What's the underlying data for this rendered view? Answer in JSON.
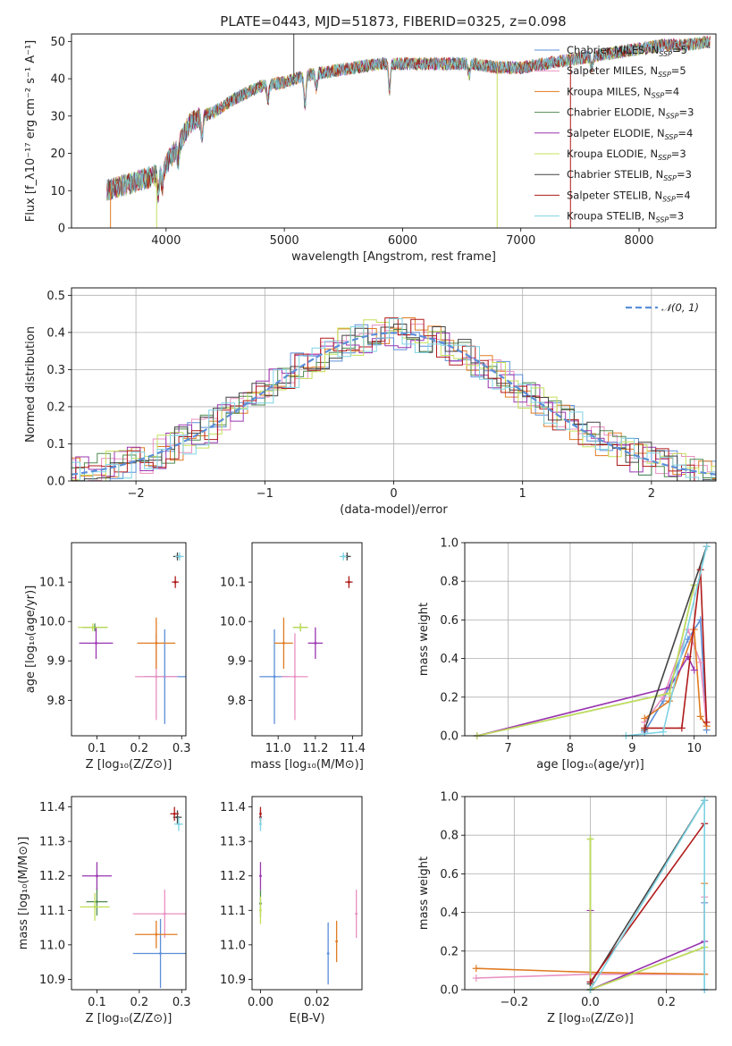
{
  "title": "PLATE=0443, MJD=51873, FIBERID=0325, z=0.098",
  "colors": {
    "Chabrier MILES": "#5b8fd9",
    "Salpeter MILES": "#e88fc0",
    "Kroupa MILES": "#e07b22",
    "Chabrier ELODIE": "#4f8a4f",
    "Salpeter ELODIE": "#9a35b0",
    "Kroupa ELODIE": "#c4e05a",
    "Chabrier STELIB": "#444444",
    "Salpeter STELIB": "#b01a1a",
    "Kroupa STELIB": "#7dd3e3",
    "normal_line": "#5b8fd9",
    "grid": "#b0b0b0"
  },
  "chart_data": [
    {
      "id": "spectrum",
      "type": "line",
      "xlabel": "wavelength [Angstrom, rest frame]",
      "ylabel": "Flux [f_λ10⁻¹⁷ erg cm⁻² s⁻¹ A⁻¹]",
      "xlim": [
        3200,
        8650
      ],
      "ylim": [
        0,
        52
      ],
      "xticks": [
        "4000",
        "5000",
        "6000",
        "7000",
        "8000"
      ],
      "yticks": [
        "0",
        "10",
        "20",
        "30",
        "40",
        "50"
      ],
      "legend_position": "upper right",
      "legend": [
        {
          "name": "Chabrier MILES",
          "sub": "SSP",
          "n": "5"
        },
        {
          "name": "Salpeter MILES",
          "sub": "SSP",
          "n": "5"
        },
        {
          "name": "Kroupa MILES",
          "sub": "SSP",
          "n": "4"
        },
        {
          "name": "Chabrier ELODIE",
          "sub": "SSP",
          "n": "3"
        },
        {
          "name": "Salpeter ELODIE",
          "sub": "SSP",
          "n": "4"
        },
        {
          "name": "Kroupa ELODIE",
          "sub": "SSP",
          "n": "3"
        },
        {
          "name": "Chabrier STELIB",
          "sub": "SSP",
          "n": "3"
        },
        {
          "name": "Salpeter STELIB",
          "sub": "SSP",
          "n": "4"
        },
        {
          "name": "Kroupa STELIB",
          "sub": "SSP",
          "n": "3"
        }
      ],
      "continuum": [
        [
          3500,
          10
        ],
        [
          3700,
          12
        ],
        [
          3900,
          14
        ],
        [
          4000,
          17
        ],
        [
          4100,
          22
        ],
        [
          4200,
          28
        ],
        [
          4300,
          30
        ],
        [
          4400,
          31
        ],
        [
          4500,
          33
        ],
        [
          4600,
          35
        ],
        [
          4800,
          38
        ],
        [
          5000,
          39
        ],
        [
          5200,
          41
        ],
        [
          5400,
          42
        ],
        [
          5600,
          43
        ],
        [
          5800,
          44
        ],
        [
          6000,
          44
        ],
        [
          6200,
          44
        ],
        [
          6400,
          44
        ],
        [
          6600,
          44
        ],
        [
          6800,
          43
        ],
        [
          7000,
          43
        ],
        [
          7200,
          44
        ],
        [
          7400,
          45
        ],
        [
          7600,
          46
        ],
        [
          7800,
          47
        ],
        [
          8000,
          48
        ],
        [
          8200,
          49
        ],
        [
          8400,
          49
        ],
        [
          8600,
          50
        ]
      ]
    },
    {
      "id": "residuals",
      "type": "bar",
      "xlabel": "(data-model)/error",
      "ylabel": "Normed distribution",
      "xlim": [
        -2.5,
        2.5
      ],
      "ylim": [
        0,
        0.52
      ],
      "xticks": [
        "−2",
        "−1",
        "0",
        "1",
        "2"
      ],
      "yticks": [
        "0.0",
        "0.1",
        "0.2",
        "0.3",
        "0.4",
        "0.5"
      ],
      "grid": true,
      "legend": "𝒩(0, 1)",
      "legend_position": "upper right",
      "bin_width": 0.1
    },
    {
      "id": "age_vs_Z",
      "type": "scatter",
      "xlabel": "Z [log₁₀(Z/Z⊙)]",
      "ylabel": "age  [log₁₀(age/yr)]",
      "xlim": [
        0.04,
        0.31
      ],
      "ylim": [
        9.71,
        10.2
      ],
      "xticks": [
        "0.1",
        "0.2",
        "0.3"
      ],
      "yticks": [
        "9.8",
        "9.9",
        "10.0",
        "10.1"
      ],
      "points": [
        {
          "model": "Chabrier MILES",
          "x": 0.26,
          "y": 9.86,
          "dx": 0.05,
          "dy": 0.12
        },
        {
          "model": "Salpeter MILES",
          "x": 0.24,
          "y": 9.86,
          "dx": 0.05,
          "dy": 0.11
        },
        {
          "model": "Kroupa MILES",
          "x": 0.24,
          "y": 9.945,
          "dx": 0.045,
          "dy": 0.065
        },
        {
          "model": "Chabrier ELODIE",
          "x": 0.095,
          "y": 9.985,
          "dx": 0.03,
          "dy": 0.01
        },
        {
          "model": "Salpeter ELODIE",
          "x": 0.098,
          "y": 9.945,
          "dx": 0.04,
          "dy": 0.04
        },
        {
          "model": "Kroupa ELODIE",
          "x": 0.09,
          "y": 9.985,
          "dx": 0.035,
          "dy": 0.01
        },
        {
          "model": "Chabrier STELIB",
          "x": 0.29,
          "y": 10.165,
          "dx": 0.01,
          "dy": 0.01
        },
        {
          "model": "Salpeter STELIB",
          "x": 0.285,
          "y": 10.1,
          "dx": 0.008,
          "dy": 0.015
        },
        {
          "model": "Kroupa STELIB",
          "x": 0.295,
          "y": 10.165,
          "dx": 0.01,
          "dy": 0.01
        }
      ]
    },
    {
      "id": "age_vs_mass",
      "type": "scatter",
      "xlabel": "mass [log₁₀(M/M⊙)]",
      "ylabel": "",
      "xlim": [
        10.86,
        11.45
      ],
      "ylim": [
        9.71,
        10.2
      ],
      "xticks": [
        "11.0",
        "11.2",
        "11.4"
      ],
      "yticks": [
        "9.8",
        "9.9",
        "10.0",
        "10.1"
      ],
      "points": [
        {
          "model": "Chabrier MILES",
          "x": 10.98,
          "y": 9.86,
          "dx": 0.08,
          "dy": 0.12
        },
        {
          "model": "Salpeter MILES",
          "x": 11.09,
          "y": 9.86,
          "dx": 0.07,
          "dy": 0.11
        },
        {
          "model": "Kroupa MILES",
          "x": 11.03,
          "y": 9.945,
          "dx": 0.05,
          "dy": 0.065
        },
        {
          "model": "Chabrier ELODIE",
          "x": 11.12,
          "y": 9.985,
          "dx": 0.04,
          "dy": 0.01
        },
        {
          "model": "Salpeter ELODIE",
          "x": 11.2,
          "y": 9.945,
          "dx": 0.04,
          "dy": 0.04
        },
        {
          "model": "Kroupa ELODIE",
          "x": 11.12,
          "y": 9.985,
          "dx": 0.04,
          "dy": 0.01
        },
        {
          "model": "Chabrier STELIB",
          "x": 11.37,
          "y": 10.165,
          "dx": 0.02,
          "dy": 0.01
        },
        {
          "model": "Salpeter STELIB",
          "x": 11.38,
          "y": 10.1,
          "dx": 0.02,
          "dy": 0.015
        },
        {
          "model": "Kroupa STELIB",
          "x": 11.35,
          "y": 10.165,
          "dx": 0.02,
          "dy": 0.01
        }
      ]
    },
    {
      "id": "weight_vs_age",
      "type": "line",
      "xlabel": "age  [log₁₀(age/yr)]",
      "ylabel": "mass weight",
      "xlim": [
        6.3,
        10.35
      ],
      "ylim": [
        0,
        1.0
      ],
      "xticks": [
        "7",
        "8",
        "9",
        "10"
      ],
      "yticks": [
        "0.0",
        "0.2",
        "0.4",
        "0.6",
        "0.8",
        "1.0"
      ],
      "grid": true,
      "series": [
        {
          "model": "Chabrier MILES",
          "points": [
            [
              9.2,
              0.02
            ],
            [
              9.5,
              0.18
            ],
            [
              9.9,
              0.5
            ],
            [
              10.1,
              0.6
            ],
            [
              10.2,
              0.03
            ]
          ]
        },
        {
          "model": "Salpeter MILES",
          "points": [
            [
              9.2,
              0.07
            ],
            [
              9.5,
              0.2
            ],
            [
              9.9,
              0.55
            ],
            [
              10.1,
              0.38
            ],
            [
              10.2,
              0.05
            ]
          ]
        },
        {
          "model": "Kroupa MILES",
          "points": [
            [
              9.2,
              0.09
            ],
            [
              9.6,
              0.18
            ],
            [
              10.0,
              0.55
            ],
            [
              10.1,
              0.1
            ],
            [
              10.2,
              0.05
            ]
          ]
        },
        {
          "model": "Chabrier ELODIE",
          "points": [
            [
              6.5,
              0.0
            ],
            [
              9.6,
              0.22
            ],
            [
              10.0,
              0.78
            ]
          ]
        },
        {
          "model": "Salpeter ELODIE",
          "points": [
            [
              6.5,
              0.0
            ],
            [
              9.6,
              0.25
            ],
            [
              9.9,
              0.41
            ],
            [
              10.0,
              0.34
            ]
          ]
        },
        {
          "model": "Kroupa ELODIE",
          "points": [
            [
              6.5,
              0.0
            ],
            [
              9.6,
              0.22
            ],
            [
              10.0,
              0.78
            ]
          ]
        },
        {
          "model": "Chabrier STELIB",
          "points": [
            [
              9.2,
              0.03
            ],
            [
              10.2,
              0.98
            ]
          ]
        },
        {
          "model": "Salpeter STELIB",
          "points": [
            [
              9.2,
              0.04
            ],
            [
              9.8,
              0.04
            ],
            [
              10.1,
              0.86
            ],
            [
              10.2,
              0.07
            ]
          ]
        },
        {
          "model": "Kroupa STELIB",
          "points": [
            [
              8.9,
              0.0
            ],
            [
              9.5,
              0.02
            ],
            [
              10.2,
              0.98
            ]
          ]
        }
      ]
    },
    {
      "id": "mass_vs_Z",
      "type": "scatter",
      "xlabel": "Z [log₁₀(Z/Z⊙)]",
      "ylabel": "mass [log₁₀(M/M⊙)]",
      "xlim": [
        0.04,
        0.31
      ],
      "ylim": [
        10.87,
        11.43
      ],
      "xticks": [
        "0.1",
        "0.2",
        "0.3"
      ],
      "yticks": [
        "10.9",
        "11.0",
        "11.1",
        "11.2",
        "11.3",
        "11.4"
      ],
      "points": [
        {
          "model": "Chabrier MILES",
          "x": 0.25,
          "y": 10.975,
          "dx": 0.065,
          "dy": 0.1
        },
        {
          "model": "Salpeter MILES",
          "x": 0.26,
          "y": 11.09,
          "dx": 0.075,
          "dy": 0.07
        },
        {
          "model": "Kroupa MILES",
          "x": 0.24,
          "y": 11.03,
          "dx": 0.05,
          "dy": 0.04
        },
        {
          "model": "Chabrier ELODIE",
          "x": 0.1,
          "y": 11.125,
          "dx": 0.025,
          "dy": 0.04
        },
        {
          "model": "Salpeter ELODIE",
          "x": 0.1,
          "y": 11.2,
          "dx": 0.035,
          "dy": 0.04
        },
        {
          "model": "Kroupa ELODIE",
          "x": 0.095,
          "y": 11.11,
          "dx": 0.035,
          "dy": 0.04
        },
        {
          "model": "Chabrier STELIB",
          "x": 0.29,
          "y": 11.37,
          "dx": 0.01,
          "dy": 0.02
        },
        {
          "model": "Salpeter STELIB",
          "x": 0.283,
          "y": 11.38,
          "dx": 0.01,
          "dy": 0.02
        },
        {
          "model": "Kroupa STELIB",
          "x": 0.293,
          "y": 11.35,
          "dx": 0.01,
          "dy": 0.02
        }
      ]
    },
    {
      "id": "mass_vs_ebv",
      "type": "scatter",
      "xlabel": "E(B-V)",
      "ylabel": "",
      "xlim": [
        -0.003,
        0.036
      ],
      "ylim": [
        10.87,
        11.43
      ],
      "xticks": [
        "0.00",
        "0.02"
      ],
      "yticks": [
        "10.9",
        "11.0",
        "11.1",
        "11.2",
        "11.3",
        "11.4"
      ],
      "points": [
        {
          "model": "Chabrier MILES",
          "x": 0.024,
          "y": 10.975,
          "dx": 0,
          "dy": 0.09
        },
        {
          "model": "Salpeter MILES",
          "x": 0.034,
          "y": 11.09,
          "dx": 0,
          "dy": 0.07
        },
        {
          "model": "Kroupa MILES",
          "x": 0.027,
          "y": 11.01,
          "dx": 0,
          "dy": 0.06
        },
        {
          "model": "Chabrier ELODIE",
          "x": 0.0,
          "y": 11.12,
          "dx": 0,
          "dy": 0.04
        },
        {
          "model": "Salpeter ELODIE",
          "x": 0.0,
          "y": 11.2,
          "dx": 0,
          "dy": 0.04
        },
        {
          "model": "Kroupa ELODIE",
          "x": 0.0,
          "y": 11.1,
          "dx": 0,
          "dy": 0.04
        },
        {
          "model": "Chabrier STELIB",
          "x": 0.0,
          "y": 11.37,
          "dx": 0,
          "dy": 0.02
        },
        {
          "model": "Salpeter STELIB",
          "x": 0.0,
          "y": 11.38,
          "dx": 0,
          "dy": 0.02
        },
        {
          "model": "Kroupa STELIB",
          "x": 0.0,
          "y": 11.35,
          "dx": 0,
          "dy": 0.02
        }
      ]
    },
    {
      "id": "weight_vs_Z",
      "type": "line",
      "xlabel": "Z [log₁₀(Z/Z⊙)]",
      "ylabel": "mass weight",
      "xlim": [
        -0.33,
        0.33
      ],
      "ylim": [
        0,
        1.0
      ],
      "xticks": [
        "−0.2",
        "0.0",
        "0.2"
      ],
      "yticks": [
        "0.0",
        "0.2",
        "0.4",
        "0.6",
        "0.8",
        "1.0"
      ],
      "grid": true,
      "series": [
        {
          "model": "Chabrier MILES",
          "points": [
            [
              0.3,
              0.0
            ],
            [
              0.3,
              0.45
            ]
          ]
        },
        {
          "model": "Salpeter MILES",
          "points": [
            [
              -0.3,
              0.06
            ],
            [
              0.0,
              0.08
            ],
            [
              0.3,
              0.08
            ],
            [
              0.3,
              0.48
            ]
          ]
        },
        {
          "model": "Kroupa MILES",
          "points": [
            [
              -0.3,
              0.11
            ],
            [
              0.0,
              0.09
            ],
            [
              0.3,
              0.08
            ],
            [
              0.3,
              0.55
            ]
          ]
        },
        {
          "model": "Chabrier ELODIE",
          "points": [
            [
              0.0,
              0.0
            ],
            [
              0.3,
              0.22
            ],
            [
              0.0,
              0.0
            ],
            [
              0.0,
              0.78
            ]
          ]
        },
        {
          "model": "Salpeter ELODIE",
          "points": [
            [
              0.0,
              0.0
            ],
            [
              0.3,
              0.25
            ],
            [
              0.0,
              0.0
            ],
            [
              0.0,
              0.41
            ]
          ]
        },
        {
          "model": "Kroupa ELODIE",
          "points": [
            [
              0.0,
              0.0
            ],
            [
              0.3,
              0.22
            ],
            [
              0.0,
              0.0
            ],
            [
              0.0,
              0.78
            ]
          ]
        },
        {
          "model": "Chabrier STELIB",
          "points": [
            [
              0.0,
              0.03
            ],
            [
              0.3,
              0.98
            ]
          ]
        },
        {
          "model": "Salpeter STELIB",
          "points": [
            [
              0.0,
              0.04
            ],
            [
              0.3,
              0.86
            ]
          ]
        },
        {
          "model": "Kroupa STELIB",
          "points": [
            [
              0.0,
              0.0
            ],
            [
              0.3,
              0.98
            ],
            [
              0.3,
              0.0
            ]
          ]
        }
      ]
    }
  ]
}
